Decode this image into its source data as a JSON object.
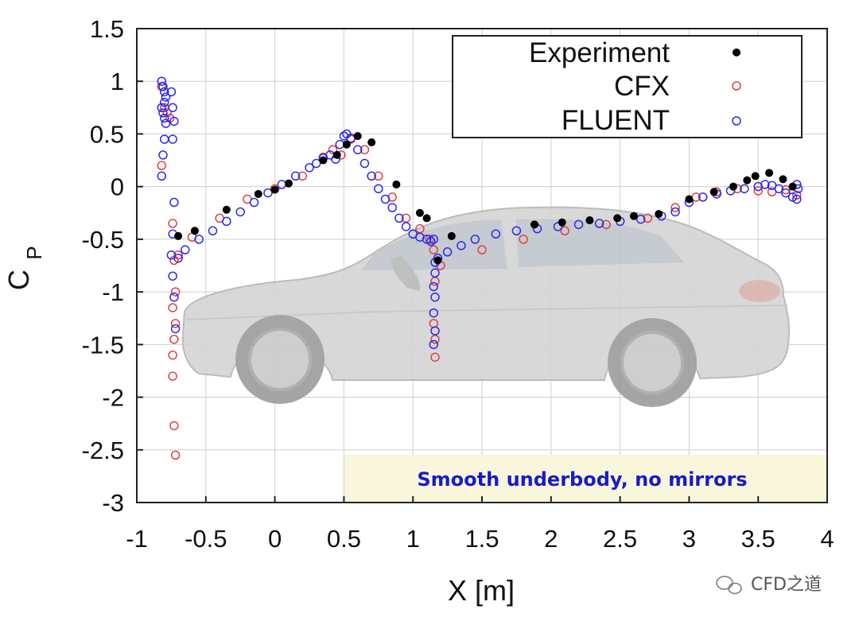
{
  "chart_data": {
    "type": "scatter",
    "xlabel": "X [m]",
    "ylabel_main": "C",
    "ylabel_sub": "P",
    "xlim": [
      -1,
      4
    ],
    "ylim": [
      -3,
      1.5
    ],
    "xticks": [
      -1,
      -0.5,
      0,
      0.5,
      1,
      1.5,
      2,
      2.5,
      3,
      3.5,
      4
    ],
    "xtick_labels": [
      "-1",
      "-0.5",
      "0",
      "0.5",
      "1",
      "1.5",
      "2",
      "2.5",
      "3",
      "3.5",
      "4"
    ],
    "yticks": [
      1.5,
      1,
      0.5,
      0,
      -0.5,
      -1,
      -1.5,
      -2,
      -2.5,
      -3
    ],
    "ytick_labels": [
      "1.5",
      "1",
      "0.5",
      "0",
      "-0.5",
      "-1",
      "-1.5",
      "-2",
      "-2.5",
      "-3"
    ],
    "grid": true,
    "legend_position": "top-right",
    "legend": [
      {
        "label": "Experiment",
        "marker": "filled-circle",
        "color": "#000000"
      },
      {
        "label": "CFX",
        "marker": "open-circle",
        "color": "#e0413a"
      },
      {
        "label": "FLUENT",
        "marker": "open-circle",
        "color": "#2a2af0"
      }
    ],
    "annotation": "Smooth underbody, no mirrors",
    "series": [
      {
        "name": "Experiment",
        "x": [
          -0.7,
          -0.58,
          -0.35,
          -0.12,
          0.0,
          0.1,
          0.35,
          0.45,
          0.52,
          0.6,
          0.7,
          0.88,
          1.05,
          1.1,
          1.18,
          1.28,
          1.88,
          2.08,
          2.28,
          2.48,
          2.6,
          2.78,
          3.0,
          3.18,
          3.32,
          3.42,
          3.48,
          3.58,
          3.68,
          3.75
        ],
        "y": [
          -0.47,
          -0.42,
          -0.22,
          -0.07,
          -0.03,
          0.03,
          0.25,
          0.3,
          0.4,
          0.48,
          0.42,
          0.02,
          -0.25,
          -0.3,
          -0.7,
          -0.47,
          -0.36,
          -0.34,
          -0.32,
          -0.3,
          -0.28,
          -0.26,
          -0.12,
          -0.05,
          0.0,
          0.06,
          0.1,
          0.13,
          0.07,
          0.0
        ]
      },
      {
        "name": "CFX",
        "x": [
          -0.82,
          -0.8,
          -0.78,
          -0.76,
          -0.82,
          -0.74,
          -0.73,
          -0.74,
          -0.72,
          -0.73,
          -0.74,
          -0.73,
          -0.72,
          -0.74,
          -0.72,
          -0.7,
          -0.6,
          -0.4,
          -0.2,
          0.0,
          0.2,
          0.35,
          0.42,
          0.48,
          0.55,
          0.65,
          0.75,
          0.85,
          0.95,
          1.05,
          1.12,
          1.15,
          1.16,
          1.15,
          1.16,
          1.16,
          1.2,
          1.5,
          1.8,
          2.1,
          2.4,
          2.7,
          2.9,
          3.05,
          3.2,
          3.35,
          3.5,
          3.6,
          3.7,
          3.78
        ],
        "y": [
          0.95,
          0.75,
          0.7,
          0.65,
          0.2,
          -0.35,
          -0.7,
          -1.15,
          -1.3,
          -1.45,
          -1.8,
          -2.27,
          -2.55,
          -1.6,
          -1.0,
          -0.65,
          -0.48,
          -0.3,
          -0.12,
          -0.02,
          0.1,
          0.28,
          0.35,
          0.3,
          0.45,
          0.35,
          0.1,
          -0.1,
          -0.3,
          -0.4,
          -0.5,
          -0.6,
          -0.9,
          -1.3,
          -1.45,
          -1.62,
          -0.75,
          -0.6,
          -0.5,
          -0.42,
          -0.36,
          -0.3,
          -0.2,
          -0.1,
          -0.05,
          -0.02,
          -0.04,
          -0.05,
          -0.03,
          -0.08
        ]
      },
      {
        "name": "FLUENT",
        "x": [
          -0.82,
          -0.81,
          -0.8,
          -0.79,
          -0.8,
          -0.82,
          -0.81,
          -0.8,
          -0.79,
          -0.8,
          -0.81,
          -0.82,
          -0.75,
          -0.74,
          -0.73,
          -0.74,
          -0.73,
          -0.74,
          -0.75,
          -0.74,
          -0.73,
          -0.72,
          -0.7,
          -0.65,
          -0.55,
          -0.45,
          -0.35,
          -0.25,
          -0.15,
          -0.05,
          0.05,
          0.15,
          0.25,
          0.3,
          0.35,
          0.4,
          0.44,
          0.47,
          0.5,
          0.52,
          0.55,
          0.6,
          0.65,
          0.7,
          0.75,
          0.8,
          0.85,
          0.9,
          0.95,
          1.0,
          1.05,
          1.1,
          1.13,
          1.15,
          1.16,
          1.15,
          1.16,
          1.15,
          1.16,
          1.15,
          1.16,
          1.18,
          1.25,
          1.35,
          1.45,
          1.6,
          1.75,
          1.9,
          2.05,
          2.2,
          2.35,
          2.5,
          2.65,
          2.8,
          2.9,
          3.0,
          3.1,
          3.2,
          3.3,
          3.4,
          3.5,
          3.55,
          3.6,
          3.65,
          3.7,
          3.75,
          3.78,
          3.79,
          3.78
        ],
        "y": [
          1.0,
          0.95,
          0.9,
          0.85,
          0.8,
          0.75,
          0.7,
          0.65,
          0.6,
          0.45,
          0.3,
          0.1,
          0.9,
          0.75,
          0.62,
          0.45,
          -0.15,
          -0.45,
          -0.65,
          -0.85,
          -1.05,
          -1.35,
          -0.68,
          -0.6,
          -0.5,
          -0.42,
          -0.33,
          -0.24,
          -0.15,
          -0.06,
          0.02,
          0.1,
          0.18,
          0.22,
          0.27,
          0.3,
          0.26,
          0.4,
          0.48,
          0.5,
          0.46,
          0.35,
          0.22,
          0.1,
          -0.02,
          -0.12,
          -0.2,
          -0.3,
          -0.38,
          -0.45,
          -0.48,
          -0.5,
          -0.52,
          -0.5,
          -0.82,
          -0.95,
          -1.05,
          -1.2,
          -1.37,
          -1.5,
          -0.72,
          -0.68,
          -0.62,
          -0.56,
          -0.5,
          -0.45,
          -0.42,
          -0.4,
          -0.38,
          -0.36,
          -0.35,
          -0.33,
          -0.31,
          -0.28,
          -0.24,
          -0.15,
          -0.1,
          -0.07,
          -0.04,
          -0.02,
          0.0,
          0.02,
          0.01,
          -0.02,
          -0.06,
          -0.1,
          -0.12,
          -0.02,
          0.02
        ]
      }
    ]
  },
  "watermark": "CFD之道"
}
